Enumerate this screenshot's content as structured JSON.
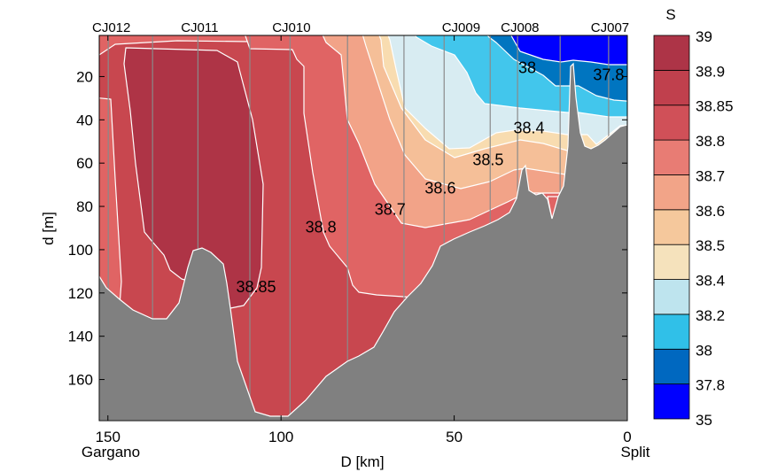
{
  "chart_data": {
    "type": "contour",
    "title": "",
    "xlabel": "D [km]",
    "ylabel": "d [m]",
    "xlim": [
      152.5,
      0
    ],
    "ylim": [
      1,
      179
    ],
    "x_ticks": [
      150,
      100,
      50,
      0
    ],
    "y_ticks": [
      20,
      40,
      60,
      80,
      100,
      120,
      140,
      160
    ],
    "x_end_labels": {
      "left": "Gargano",
      "right": "Split"
    },
    "colorbar": {
      "title": "S",
      "levels": [
        "35",
        "37.8",
        "38",
        "38.2",
        "38.4",
        "38.5",
        "38.6",
        "38.7",
        "38.8",
        "38.85",
        "38.9",
        "39"
      ],
      "colors": [
        "#0000FF",
        "#0068C0",
        "#30C0E8",
        "#BEE4EE",
        "#F5E2BC",
        "#F5C89C",
        "#F2A488",
        "#E87C74",
        "#D05058",
        "#C0404D",
        "#AD3447"
      ]
    },
    "stations": [
      {
        "name": "CJ012",
        "km": 149
      },
      {
        "name": "CJ011",
        "km": 123.5
      },
      {
        "name": "CJ010",
        "km": 97
      },
      {
        "name": "CJ009",
        "km": 48
      },
      {
        "name": "CJ008",
        "km": 31
      },
      {
        "name": "CJ007",
        "km": 5
      }
    ],
    "cast_lines_km": [
      149.9,
      137.1,
      124,
      109,
      97.4,
      80.8,
      64.5,
      52.9,
      39.6,
      31.7,
      19.4,
      5.4
    ],
    "contour_labels": [
      {
        "text": "38.85",
        "km": 107.2,
        "m": 116.7
      },
      {
        "text": "38.8",
        "km": 88.5,
        "m": 89.2
      },
      {
        "text": "38.7",
        "km": 68.5,
        "m": 81
      },
      {
        "text": "38.6",
        "km": 54,
        "m": 71.2
      },
      {
        "text": "38.5",
        "km": 40.2,
        "m": 58.1
      },
      {
        "text": "38.4",
        "km": 28.4,
        "m": 43.4
      },
      {
        "text": "38",
        "km": 28.9,
        "m": 15.5
      },
      {
        "text": "37.8",
        "km": 5.4,
        "m": 18.8
      }
    ],
    "bathymetry_color": "#808080"
  }
}
